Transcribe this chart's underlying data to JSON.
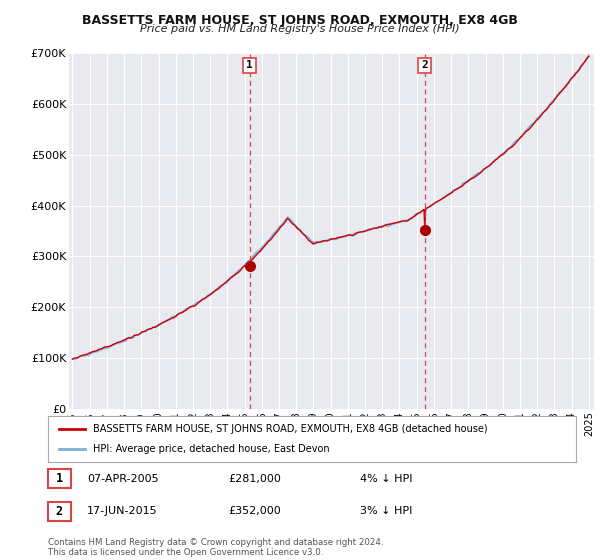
{
  "title": "BASSETTS FARM HOUSE, ST JOHNS ROAD, EXMOUTH, EX8 4GB",
  "subtitle": "Price paid vs. HM Land Registry's House Price Index (HPI)",
  "legend_line1": "BASSETTS FARM HOUSE, ST JOHNS ROAD, EXMOUTH, EX8 4GB (detached house)",
  "legend_line2": "HPI: Average price, detached house, East Devon",
  "sale1_date": "07-APR-2005",
  "sale1_price": 281000,
  "sale1_label": "1",
  "sale1_note": "4% ↓ HPI",
  "sale2_date": "17-JUN-2015",
  "sale2_price": 352000,
  "sale2_label": "2",
  "sale2_note": "3% ↓ HPI",
  "footer": "Contains HM Land Registry data © Crown copyright and database right 2024.\nThis data is licensed under the Open Government Licence v3.0.",
  "hpi_color": "#7bafd4",
  "price_color": "#cc0000",
  "fill_color": "#ccdff0",
  "sale_vline_color": "#dd4444",
  "background_color": "#ffffff",
  "plot_bg_color": "#e8eaf0",
  "ylim": [
    0,
    700000
  ],
  "yticks": [
    0,
    100000,
    200000,
    300000,
    400000,
    500000,
    600000,
    700000
  ],
  "year_start": 1995,
  "year_end": 2025,
  "sale1_year": 2005.29,
  "sale2_year": 2015.46
}
